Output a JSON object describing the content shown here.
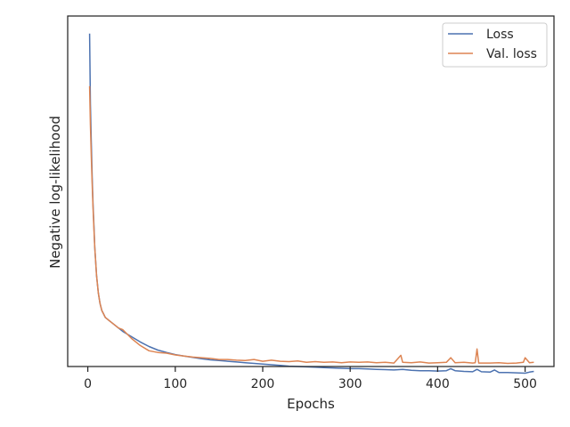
{
  "chart_data": {
    "type": "line",
    "title": "",
    "xlabel": "Epochs",
    "ylabel": "Negative log-likelihood",
    "xlim": [
      -23,
      533
    ],
    "ylim": [
      0.0,
      1.0
    ],
    "y_tick_labels_shown": false,
    "grid": false,
    "legend_position": "top-right",
    "x_ticks": [
      0,
      100,
      200,
      300,
      400,
      500
    ],
    "x_tick_labels": [
      "0",
      "100",
      "200",
      "300",
      "400",
      "500"
    ],
    "series": [
      {
        "name": "Loss",
        "color": "#4c72b0",
        "x": [
          2,
          3,
          4,
          5,
          6,
          7,
          8,
          9,
          10,
          12,
          14,
          16,
          18,
          20,
          25,
          30,
          35,
          40,
          50,
          60,
          70,
          80,
          90,
          100,
          110,
          120,
          130,
          140,
          150,
          160,
          170,
          180,
          190,
          200,
          210,
          220,
          230,
          240,
          250,
          260,
          270,
          280,
          290,
          300,
          310,
          320,
          330,
          340,
          350,
          360,
          370,
          380,
          390,
          400,
          410,
          415,
          420,
          430,
          440,
          445,
          450,
          460,
          465,
          470,
          480,
          490,
          500,
          505,
          510
        ],
        "y": [
          0.95,
          0.75,
          0.64,
          0.54,
          0.46,
          0.4,
          0.34,
          0.3,
          0.26,
          0.21,
          0.18,
          0.16,
          0.15,
          0.14,
          0.13,
          0.12,
          0.11,
          0.1,
          0.085,
          0.07,
          0.057,
          0.047,
          0.04,
          0.034,
          0.03,
          0.026,
          0.022,
          0.019,
          0.017,
          0.015,
          0.013,
          0.011,
          0.009,
          0.007,
          0.005,
          0.003,
          0.001,
          0.0,
          -0.001,
          -0.002,
          -0.003,
          -0.004,
          -0.005,
          -0.006,
          -0.006,
          -0.007,
          -0.008,
          -0.009,
          -0.01,
          -0.008,
          -0.011,
          -0.012,
          -0.012,
          -0.013,
          -0.012,
          -0.006,
          -0.012,
          -0.014,
          -0.015,
          -0.008,
          -0.015,
          -0.016,
          -0.01,
          -0.017,
          -0.017,
          -0.018,
          -0.019,
          -0.016,
          -0.014
        ]
      },
      {
        "name": "Val. loss",
        "color": "#dd8452",
        "x": [
          2,
          3,
          4,
          5,
          6,
          7,
          8,
          9,
          10,
          12,
          14,
          16,
          18,
          20,
          25,
          30,
          35,
          40,
          50,
          60,
          70,
          80,
          90,
          100,
          110,
          120,
          130,
          140,
          150,
          160,
          170,
          180,
          190,
          200,
          210,
          220,
          230,
          240,
          250,
          260,
          270,
          280,
          290,
          300,
          310,
          320,
          330,
          340,
          350,
          358,
          360,
          370,
          380,
          390,
          400,
          410,
          415,
          420,
          430,
          440,
          443,
          445,
          447,
          450,
          460,
          470,
          480,
          490,
          498,
          500,
          505,
          510
        ],
        "y": [
          0.8,
          0.69,
          0.6,
          0.52,
          0.45,
          0.39,
          0.34,
          0.3,
          0.26,
          0.21,
          0.18,
          0.16,
          0.15,
          0.14,
          0.13,
          0.12,
          0.11,
          0.105,
          0.08,
          0.06,
          0.045,
          0.04,
          0.038,
          0.033,
          0.03,
          0.027,
          0.025,
          0.023,
          0.02,
          0.02,
          0.018,
          0.017,
          0.02,
          0.015,
          0.018,
          0.015,
          0.014,
          0.016,
          0.012,
          0.014,
          0.012,
          0.013,
          0.011,
          0.013,
          0.012,
          0.013,
          0.011,
          0.012,
          0.01,
          0.032,
          0.012,
          0.011,
          0.013,
          0.01,
          0.011,
          0.012,
          0.025,
          0.011,
          0.012,
          0.01,
          0.011,
          0.05,
          0.01,
          0.01,
          0.01,
          0.011,
          0.009,
          0.01,
          0.012,
          0.025,
          0.011,
          0.012
        ]
      }
    ]
  }
}
